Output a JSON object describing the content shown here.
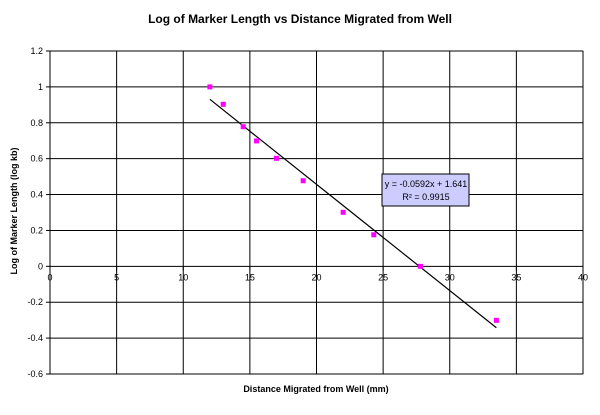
{
  "chart_data": {
    "type": "scatter",
    "title": "Log of Marker Length vs Distance Migrated from Well",
    "xlabel": "Distance Migrated from Well (mm)",
    "ylabel": "Log of Marker Length (log kb)",
    "xlim": [
      0,
      40
    ],
    "ylim": [
      -0.6,
      1.2
    ],
    "x_ticks": [
      0,
      5,
      10,
      15,
      20,
      25,
      30,
      35,
      40
    ],
    "y_ticks": [
      -0.6,
      -0.4,
      -0.2,
      0,
      0.2,
      0.4,
      0.6,
      0.8,
      1,
      1.2
    ],
    "x_tick_labels": [
      "0",
      "5",
      "10",
      "15",
      "20",
      "25",
      "30",
      "35",
      "40"
    ],
    "y_tick_labels": [
      "-0.6",
      "-0.4",
      "-0.2",
      "0",
      "0.2",
      "0.4",
      "0.6",
      "0.8",
      "1",
      "1.2"
    ],
    "grid": true,
    "legend": "none",
    "marker_color": "#FF00FF",
    "series": [
      {
        "x": [
          12.0,
          13.0,
          14.5,
          15.5,
          17.0,
          19.0,
          22.0,
          24.3,
          27.8,
          33.5
        ],
        "y": [
          1.0,
          0.903,
          0.778,
          0.699,
          0.602,
          0.477,
          0.301,
          0.176,
          0.0,
          -0.301
        ]
      }
    ],
    "trendline": {
      "slope": -0.0592,
      "intercept": 1.641,
      "x_range": [
        12.0,
        33.5
      ],
      "color": "#000000",
      "equation_label": "y = -0.0592x + 1.641",
      "r2_label": "R² = 0.9915",
      "label_box_fill": "#CCCCFF"
    }
  }
}
